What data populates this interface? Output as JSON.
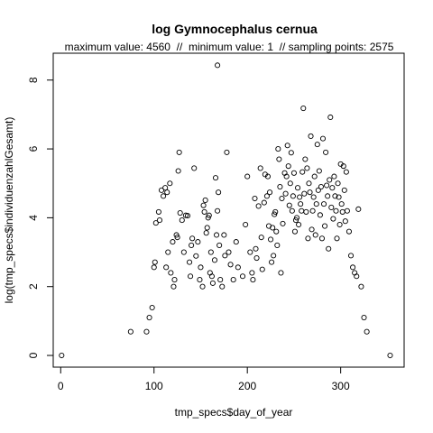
{
  "chart_data": {
    "type": "scatter",
    "title": "log Gymnocephalus cernua",
    "subtitle": "maximum value: 4560  //  minimum value: 1  // sampling points: 2575",
    "xlabel": "tmp_specs$day_of_year",
    "ylabel": "log(tmp_specs$individuenzahlGesamt)",
    "xlim": [
      -8,
      368
    ],
    "ylim": [
      -0.34,
      8.78
    ],
    "x_ticks": [
      0,
      100,
      200,
      300
    ],
    "y_ticks": [
      0,
      2,
      4,
      6,
      8
    ],
    "x_tick_labels": [
      "0",
      "100",
      "200",
      "300"
    ],
    "y_tick_labels": [
      "0",
      "2",
      "4",
      "6",
      "8"
    ],
    "grid": false,
    "marker": "open-circle",
    "marker_color": "#000000",
    "points": [
      [
        1,
        0
      ],
      [
        75,
        0.69
      ],
      [
        92,
        0.69
      ],
      [
        95,
        1.1
      ],
      [
        98,
        1.39
      ],
      [
        100,
        2.56
      ],
      [
        101,
        2.71
      ],
      [
        102,
        3.85
      ],
      [
        105,
        4.17
      ],
      [
        106,
        3.93
      ],
      [
        108,
        4.8
      ],
      [
        110,
        4.63
      ],
      [
        112,
        4.87
      ],
      [
        113,
        2.56
      ],
      [
        114,
        4.74
      ],
      [
        115,
        3.0
      ],
      [
        117,
        5.0
      ],
      [
        118,
        2.4
      ],
      [
        120,
        3.3
      ],
      [
        121,
        2.0
      ],
      [
        122,
        2.2
      ],
      [
        124,
        3.5
      ],
      [
        125,
        3.43
      ],
      [
        126,
        5.36
      ],
      [
        127,
        5.9
      ],
      [
        128,
        4.14
      ],
      [
        130,
        3.93
      ],
      [
        132,
        3.0
      ],
      [
        134,
        4.07
      ],
      [
        136,
        4.06
      ],
      [
        138,
        2.71
      ],
      [
        139,
        2.3
      ],
      [
        140,
        3.2
      ],
      [
        141,
        3.4
      ],
      [
        143,
        5.44
      ],
      [
        145,
        2.89
      ],
      [
        147,
        3.3
      ],
      [
        149,
        2.2
      ],
      [
        150,
        2.56
      ],
      [
        152,
        2.0
      ],
      [
        153,
        4.36
      ],
      [
        154,
        4.17
      ],
      [
        155,
        4.51
      ],
      [
        156,
        3.56
      ],
      [
        157,
        3.71
      ],
      [
        158,
        4.0
      ],
      [
        159,
        4.07
      ],
      [
        160,
        2.4
      ],
      [
        161,
        3.0
      ],
      [
        162,
        2.3
      ],
      [
        163,
        2.1
      ],
      [
        165,
        2.77
      ],
      [
        166,
        5.16
      ],
      [
        167,
        3.5
      ],
      [
        168,
        4.2
      ],
      [
        168,
        8.43
      ],
      [
        169,
        4.74
      ],
      [
        170,
        3.2
      ],
      [
        171,
        2.2
      ],
      [
        173,
        2.0
      ],
      [
        175,
        3.5
      ],
      [
        176,
        2.9
      ],
      [
        178,
        5.9
      ],
      [
        180,
        3.0
      ],
      [
        182,
        2.64
      ],
      [
        185,
        2.2
      ],
      [
        188,
        3.3
      ],
      [
        190,
        2.56
      ],
      [
        195,
        2.3
      ],
      [
        198,
        3.8
      ],
      [
        200,
        5.2
      ],
      [
        203,
        3.0
      ],
      [
        205,
        2.4
      ],
      [
        206,
        2.2
      ],
      [
        208,
        4.56
      ],
      [
        209,
        3.1
      ],
      [
        210,
        2.83
      ],
      [
        212,
        4.34
      ],
      [
        214,
        5.44
      ],
      [
        215,
        3.43
      ],
      [
        216,
        2.5
      ],
      [
        218,
        4.44
      ],
      [
        219,
        5.26
      ],
      [
        221,
        4.63
      ],
      [
        222,
        5.2
      ],
      [
        223,
        3.76
      ],
      [
        224,
        4.74
      ],
      [
        225,
        3.37
      ],
      [
        226,
        2.71
      ],
      [
        227,
        3.71
      ],
      [
        228,
        2.9
      ],
      [
        229,
        4.1
      ],
      [
        230,
        4.17
      ],
      [
        231,
        3.6
      ],
      [
        232,
        3.2
      ],
      [
        233,
        6.0
      ],
      [
        234,
        5.7
      ],
      [
        235,
        4.9
      ],
      [
        236,
        2.4
      ],
      [
        237,
        4.56
      ],
      [
        238,
        3.83
      ],
      [
        240,
        5.3
      ],
      [
        241,
        4.7
      ],
      [
        242,
        5.2
      ],
      [
        243,
        6.1
      ],
      [
        244,
        5.5
      ],
      [
        245,
        4.36
      ],
      [
        246,
        5.0
      ],
      [
        247,
        5.89
      ],
      [
        248,
        4.2
      ],
      [
        249,
        4.63
      ],
      [
        250,
        5.3
      ],
      [
        251,
        3.6
      ],
      [
        252,
        3.93
      ],
      [
        253,
        4.0
      ],
      [
        254,
        4.87
      ],
      [
        255,
        3.8
      ],
      [
        256,
        4.6
      ],
      [
        257,
        4.4
      ],
      [
        258,
        4.2
      ],
      [
        259,
        5.33
      ],
      [
        260,
        7.18
      ],
      [
        261,
        4.7
      ],
      [
        262,
        5.7
      ],
      [
        263,
        4.17
      ],
      [
        264,
        5.44
      ],
      [
        265,
        3.4
      ],
      [
        266,
        5.0
      ],
      [
        267,
        4.74
      ],
      [
        268,
        6.37
      ],
      [
        269,
        3.66
      ],
      [
        270,
        4.2
      ],
      [
        271,
        4.6
      ],
      [
        272,
        5.2
      ],
      [
        273,
        3.5
      ],
      [
        274,
        4.4
      ],
      [
        275,
        6.13
      ],
      [
        276,
        4.8
      ],
      [
        277,
        5.36
      ],
      [
        278,
        4.08
      ],
      [
        279,
        4.9
      ],
      [
        280,
        3.4
      ],
      [
        281,
        6.3
      ],
      [
        282,
        4.4
      ],
      [
        283,
        3.76
      ],
      [
        284,
        5.9
      ],
      [
        285,
        4.94
      ],
      [
        286,
        4.63
      ],
      [
        287,
        3.1
      ],
      [
        288,
        5.1
      ],
      [
        289,
        6.92
      ],
      [
        290,
        4.3
      ],
      [
        291,
        4.87
      ],
      [
        292,
        3.97
      ],
      [
        293,
        5.2
      ],
      [
        294,
        4.63
      ],
      [
        295,
        4.2
      ],
      [
        296,
        3.4
      ],
      [
        297,
        5.0
      ],
      [
        298,
        4.6
      ],
      [
        299,
        3.8
      ],
      [
        300,
        5.56
      ],
      [
        301,
        4.4
      ],
      [
        302,
        4.17
      ],
      [
        303,
        5.5
      ],
      [
        304,
        4.8
      ],
      [
        305,
        3.9
      ],
      [
        306,
        5.33
      ],
      [
        307,
        4.2
      ],
      [
        309,
        3.6
      ],
      [
        311,
        2.9
      ],
      [
        313,
        2.56
      ],
      [
        315,
        2.4
      ],
      [
        317,
        2.3
      ],
      [
        319,
        4.25
      ],
      [
        322,
        2.0
      ],
      [
        325,
        1.1
      ],
      [
        328,
        0.69
      ],
      [
        353,
        0
      ]
    ]
  }
}
